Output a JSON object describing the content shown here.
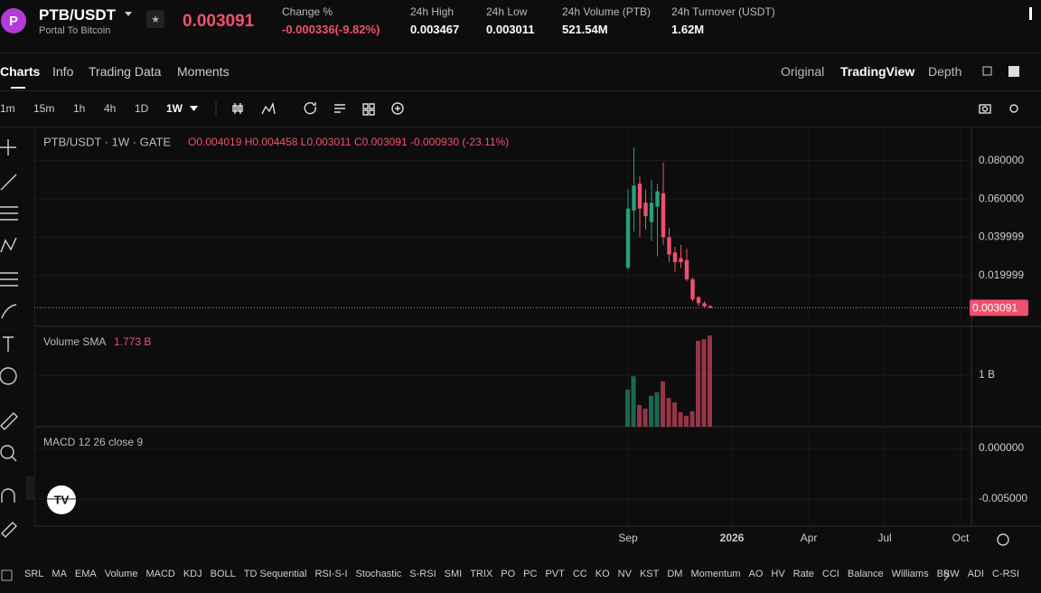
{
  "header": {
    "symbol": "PTB/USDT",
    "name": "Portal To Bitcoin",
    "price": "0.003091",
    "stats": [
      {
        "label": "Change %",
        "value": "-0.000336(-9.82%)"
      },
      {
        "label": "24h High",
        "value": "0.003467"
      },
      {
        "label": "24h Low",
        "value": "0.003011"
      },
      {
        "label": "24h Volume (PTB)",
        "value": "521.54M"
      },
      {
        "label": "24h Turnover (USDT)",
        "value": "1.62M"
      }
    ]
  },
  "tabs": [
    "Charts",
    "Info",
    "Trading Data",
    "Moments"
  ],
  "views": [
    "Original",
    "TradingView",
    "Depth"
  ],
  "intervals": [
    "1m",
    "15m",
    "1h",
    "4h",
    "1D",
    "1W"
  ],
  "chart_data": {
    "type": "candlestick",
    "legend": "PTB/USDT · 1W · GATE",
    "ohlc_legend": "O0.004019 H0.004458 L0.003011 C0.003091 -0.000930 (-23.11%)",
    "up_color": "#26a17b",
    "down_color": "#f0506e",
    "open": [
      0.024,
      0.054,
      0.068,
      0.058,
      0.048,
      0.056,
      0.063,
      0.04,
      0.032,
      0.029,
      0.028,
      0.018,
      0.0085,
      0.0055,
      0.004019
    ],
    "high": [
      0.065,
      0.087,
      0.072,
      0.065,
      0.07,
      0.068,
      0.079,
      0.045,
      0.035,
      0.036,
      0.034,
      0.019,
      0.0095,
      0.0065,
      0.004458
    ],
    "low": [
      0.023,
      0.043,
      0.04,
      0.044,
      0.038,
      0.03,
      0.036,
      0.027,
      0.022,
      0.024,
      0.017,
      0.0065,
      0.004,
      0.0033,
      0.003011
    ],
    "close": [
      0.055,
      0.067,
      0.055,
      0.051,
      0.058,
      0.064,
      0.04,
      0.031,
      0.027,
      0.027,
      0.018,
      0.0075,
      0.0055,
      0.0038,
      0.003091
    ],
    "ylim": [
      -0.0066,
      0.0974
    ],
    "yticks": [
      {
        "value": 0.08,
        "label": "0.080000"
      },
      {
        "value": 0.06,
        "label": "0.060000"
      },
      {
        "value": 0.039999,
        "label": "0.039999"
      },
      {
        "value": 0.019999,
        "label": "0.019999"
      }
    ],
    "last_price": {
      "value": 0.003091,
      "label": "0.003091"
    },
    "volume": {
      "label": "Volume SMA",
      "sma_label": "1.773 B",
      "values": [
        0.72,
        0.98,
        0.42,
        0.35,
        0.6,
        0.67,
        0.88,
        0.56,
        0.47,
        0.28,
        0.21,
        0.3,
        1.67,
        1.7,
        1.77
      ],
      "ylim": [
        0,
        1.95
      ],
      "yticks": [
        {
          "value": 1,
          "label": "1 B"
        }
      ]
    },
    "macd": {
      "label": "MACD 12 26 close 9",
      "ylim": [
        -0.00768,
        0.00214
      ],
      "yticks": [
        {
          "value": 0,
          "label": "0.000000"
        },
        {
          "value": -0.005,
          "label": "-0.005000"
        }
      ]
    },
    "xticks": [
      "Sep",
      "2026",
      "Apr",
      "Jul",
      "Oct"
    ]
  },
  "indicators": [
    "SRL",
    "MA",
    "EMA",
    "Volume",
    "MACD",
    "KDJ",
    "BOLL",
    "TD Sequential",
    "RSI-S-I",
    "Stochastic",
    "S-RSI",
    "SMI",
    "TRIX",
    "PO",
    "PC",
    "PVT",
    "CC",
    "KO",
    "NV",
    "KST",
    "DM",
    "Momentum",
    "AO",
    "HV",
    "Rate",
    "CCI",
    "Balance",
    "Williams",
    "BBW",
    "ADI",
    "C-RSI"
  ]
}
